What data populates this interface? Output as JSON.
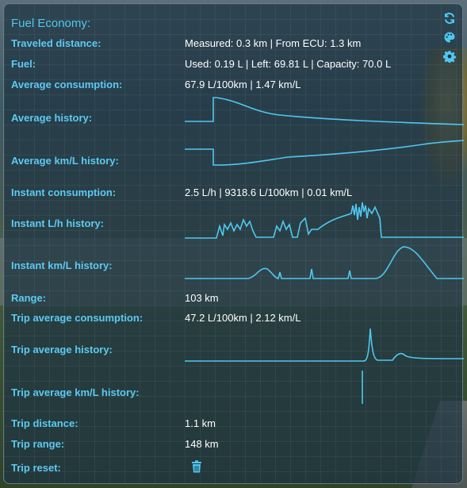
{
  "panel": {
    "title": "Fuel Economy:"
  },
  "toolbar": {
    "icons": [
      "refresh-icon",
      "palette-icon",
      "gear-icon"
    ]
  },
  "rows": {
    "traveled_distance": {
      "label": "Traveled distance:",
      "value": "Measured: 0.3 km | From ECU: 1.3 km"
    },
    "fuel": {
      "label": "Fuel:",
      "value": "Used: 0.19 L | Left: 69.81 L | Capacity: 70.0 L"
    },
    "average_consumption": {
      "label": "Average consumption:",
      "value": "67.9 L/100km | 1.47 km/L"
    },
    "average_history": {
      "label": "Average history:"
    },
    "average_kml_history": {
      "label": "Average km/L history:"
    },
    "instant_consumption": {
      "label": "Instant consumption:",
      "value": "2.5 L/h | 9318.6 L/100km | 0.01 km/L"
    },
    "instant_lh_history": {
      "label": "Instant L/h history:"
    },
    "instant_kml_history": {
      "label": "Instant km/L history:"
    },
    "range": {
      "label": "Range:",
      "value": "103 km"
    },
    "trip_average_consumption": {
      "label": "Trip average consumption:",
      "value": "47.2 L/100km | 2.12 km/L"
    },
    "trip_average_history": {
      "label": "Trip average history:"
    },
    "trip_average_kml_history": {
      "label": "Trip average km/L history:"
    },
    "trip_distance": {
      "label": "Trip distance:",
      "value": "1.1 km"
    },
    "trip_range": {
      "label": "Trip range:",
      "value": "148 km"
    },
    "trip_reset": {
      "label": "Trip reset:",
      "button_icon": "trash-icon"
    }
  },
  "colors": {
    "accent": "#4fc8f0",
    "value_text": "#ffffff",
    "panel_bg": "#1f3442"
  }
}
